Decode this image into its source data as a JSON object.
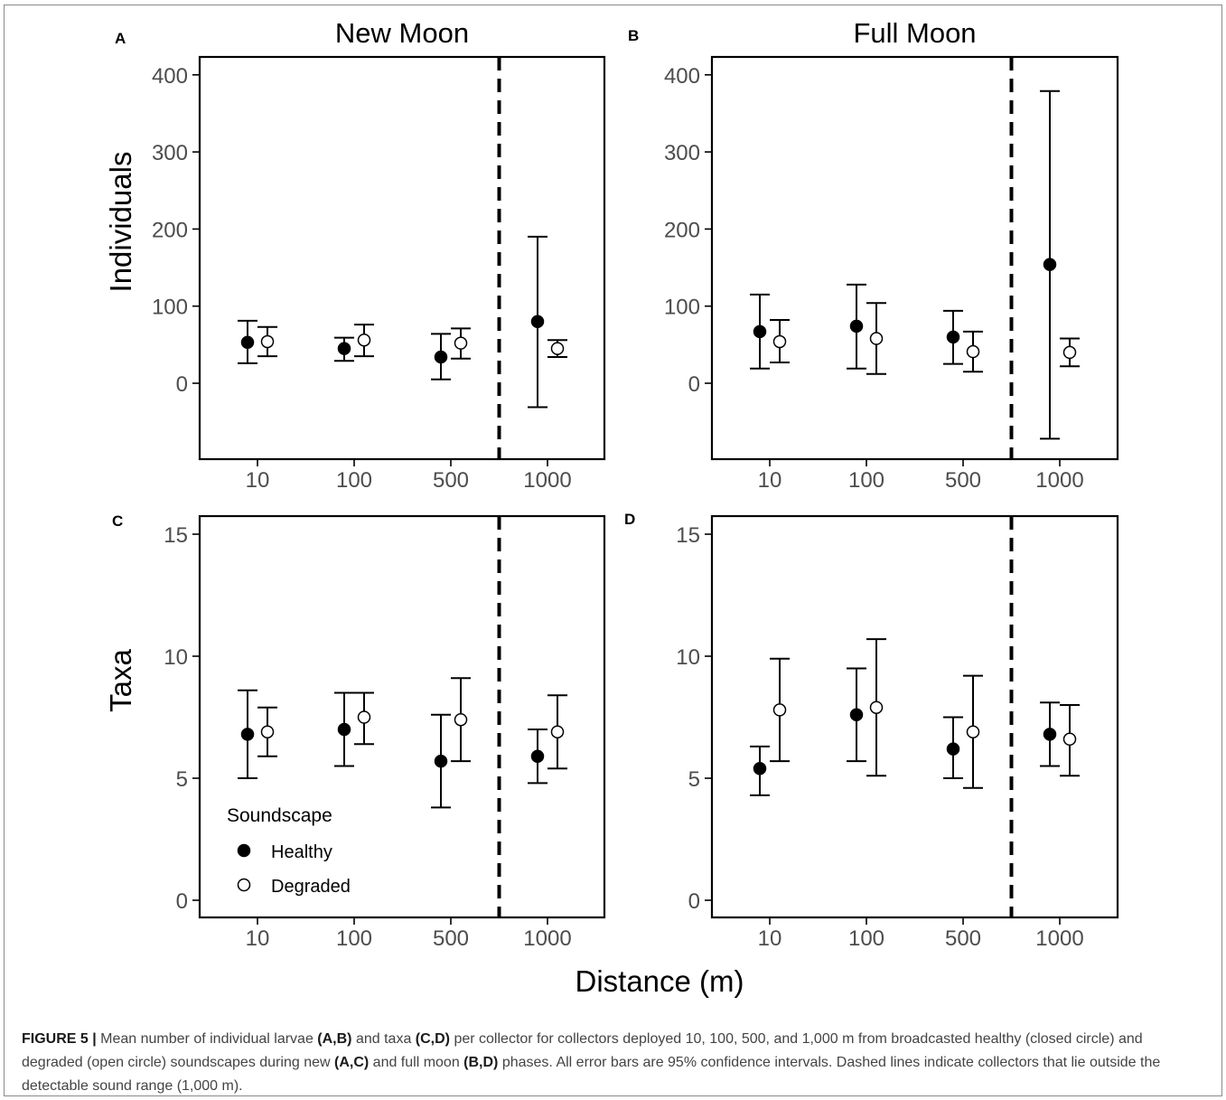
{
  "figure": {
    "xlabel": "Distance (m)",
    "x_categories": [
      "10",
      "100",
      "500",
      "1000"
    ],
    "legend": {
      "title": "Soundscape",
      "items": [
        {
          "label": "Healthy",
          "marker": "filled-circle"
        },
        {
          "label": "Degraded",
          "marker": "open-circle"
        }
      ],
      "placement": "bottom-left inside panel C"
    },
    "colors": {
      "healthy": "#000000",
      "degraded": "#ffffff",
      "ink": "#000000",
      "tick_text": "#4d4d4d"
    }
  },
  "caption": {
    "label": "FIGURE 5 |",
    "parts": [
      {
        "text": " Mean number of individual larvae ",
        "bold": false
      },
      {
        "text": "(A,B)",
        "bold": true
      },
      {
        "text": " and taxa ",
        "bold": false
      },
      {
        "text": "(C,D)",
        "bold": true
      },
      {
        "text": " per collector for collectors deployed 10, 100, 500, and 1,000 m from broadcasted healthy (closed circle) and degraded (open circle) soundscapes during new ",
        "bold": false
      },
      {
        "text": "(A,C)",
        "bold": true
      },
      {
        "text": " and full moon ",
        "bold": false
      },
      {
        "text": "(B,D)",
        "bold": true
      },
      {
        "text": " phases. All error bars are 95% confidence intervals. Dashed lines indicate collectors that lie outside the detectable sound range (1,000  m).",
        "bold": false
      }
    ]
  },
  "chart_data": [
    {
      "panel": "A",
      "type": "scatter",
      "title": "New Moon",
      "ylabel": "Individuals",
      "xlabel": "",
      "categories": [
        "10",
        "100",
        "500",
        "1000"
      ],
      "ylim": [
        -100,
        425
      ],
      "yticks": [
        0,
        100,
        200,
        300,
        400
      ],
      "dashed_line_between": [
        "500",
        "1000"
      ],
      "grid": false,
      "series": [
        {
          "name": "Healthy",
          "values": [
            53,
            45,
            34,
            80
          ],
          "ci_low": [
            26,
            29,
            5,
            -31
          ],
          "ci_high": [
            81,
            59,
            64,
            190
          ]
        },
        {
          "name": "Degraded",
          "values": [
            54,
            56,
            52,
            45
          ],
          "ci_low": [
            35,
            35,
            32,
            34
          ],
          "ci_high": [
            73,
            76,
            71,
            56
          ]
        }
      ]
    },
    {
      "panel": "B",
      "type": "scatter",
      "title": "Full Moon",
      "ylabel": "",
      "xlabel": "",
      "categories": [
        "10",
        "100",
        "500",
        "1000"
      ],
      "ylim": [
        -100,
        425
      ],
      "yticks": [
        0,
        100,
        200,
        300,
        400
      ],
      "dashed_line_between": [
        "500",
        "1000"
      ],
      "grid": false,
      "series": [
        {
          "name": "Healthy",
          "values": [
            67,
            74,
            60,
            154
          ],
          "ci_low": [
            19,
            19,
            25,
            -72
          ],
          "ci_high": [
            115,
            128,
            94,
            379
          ]
        },
        {
          "name": "Degraded",
          "values": [
            54,
            58,
            41,
            40
          ],
          "ci_low": [
            27,
            12,
            15,
            22
          ],
          "ci_high": [
            82,
            104,
            67,
            58
          ]
        }
      ]
    },
    {
      "panel": "C",
      "type": "scatter",
      "title": "",
      "ylabel": "Taxa",
      "xlabel": "",
      "categories": [
        "10",
        "100",
        "500",
        "1000"
      ],
      "ylim": [
        -0.7,
        15.7
      ],
      "yticks": [
        0,
        5,
        10,
        15
      ],
      "dashed_line_between": [
        "500",
        "1000"
      ],
      "grid": false,
      "series": [
        {
          "name": "Healthy",
          "values": [
            6.8,
            7.0,
            5.7,
            5.9
          ],
          "ci_low": [
            5.0,
            5.5,
            3.8,
            4.8
          ],
          "ci_high": [
            8.6,
            8.5,
            7.6,
            7.0
          ]
        },
        {
          "name": "Degraded",
          "values": [
            6.9,
            7.5,
            7.4,
            6.9
          ],
          "ci_low": [
            5.9,
            6.4,
            5.7,
            5.4
          ],
          "ci_high": [
            7.9,
            8.5,
            9.1,
            8.4
          ]
        }
      ]
    },
    {
      "panel": "D",
      "type": "scatter",
      "title": "",
      "ylabel": "",
      "xlabel": "",
      "categories": [
        "10",
        "100",
        "500",
        "1000"
      ],
      "ylim": [
        -0.7,
        15.7
      ],
      "yticks": [
        0,
        5,
        10,
        15
      ],
      "dashed_line_between": [
        "500",
        "1000"
      ],
      "grid": false,
      "series": [
        {
          "name": "Healthy",
          "values": [
            5.4,
            7.6,
            6.2,
            6.8
          ],
          "ci_low": [
            4.3,
            5.7,
            5.0,
            5.5
          ],
          "ci_high": [
            6.3,
            9.5,
            7.5,
            8.1
          ]
        },
        {
          "name": "Degraded",
          "values": [
            7.8,
            7.9,
            6.9,
            6.6
          ],
          "ci_low": [
            5.7,
            5.1,
            4.6,
            5.1
          ],
          "ci_high": [
            9.9,
            10.7,
            9.2,
            8.0
          ]
        }
      ]
    }
  ]
}
